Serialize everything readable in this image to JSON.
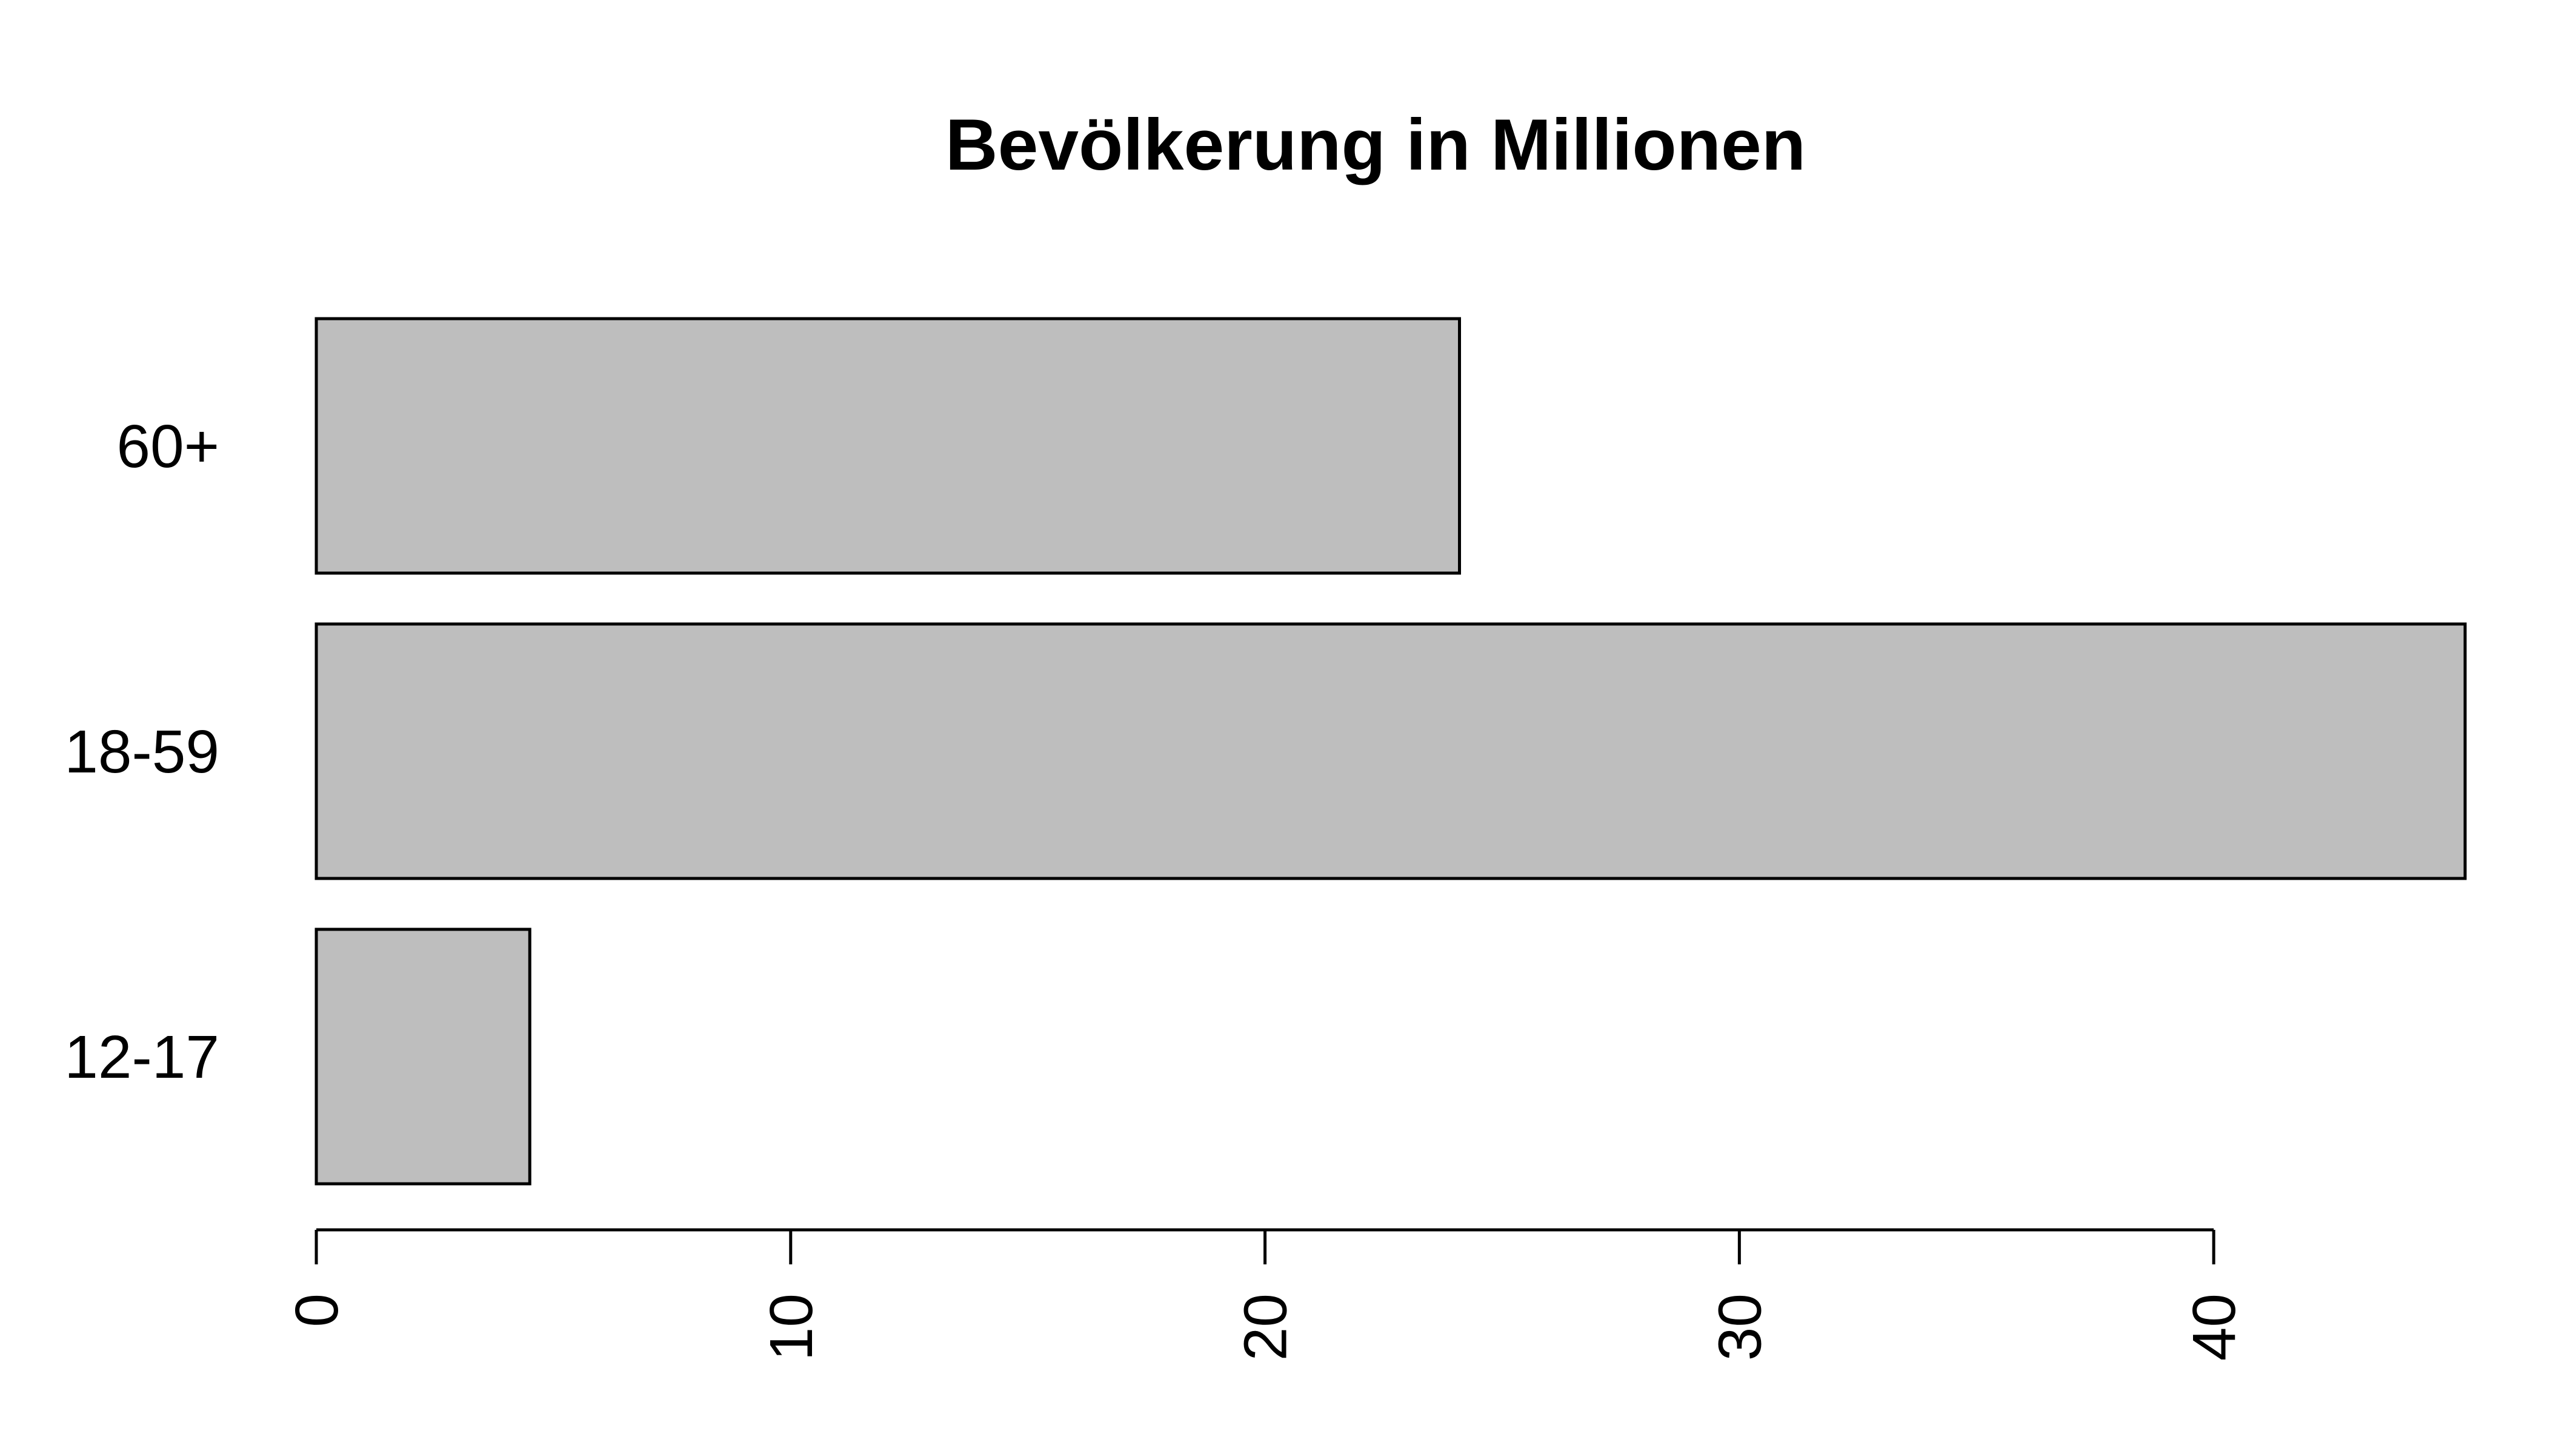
{
  "chart_data": {
    "type": "bar",
    "orientation": "horizontal",
    "title": "Bevölkerung in Millionen",
    "xlabel": "",
    "ylabel": "",
    "categories": [
      "12-17",
      "18-59",
      "60+"
    ],
    "values": [
      4.5,
      45.3,
      24.1
    ],
    "xlim": [
      0,
      45.3
    ],
    "x_ticks": [
      0,
      10,
      20,
      30,
      40
    ],
    "x_tick_labels": [
      "0",
      "10",
      "20",
      "30",
      "40"
    ],
    "grid": false,
    "legend": "none",
    "bar_fill": "#bebebe",
    "bar_stroke": "#000000"
  }
}
